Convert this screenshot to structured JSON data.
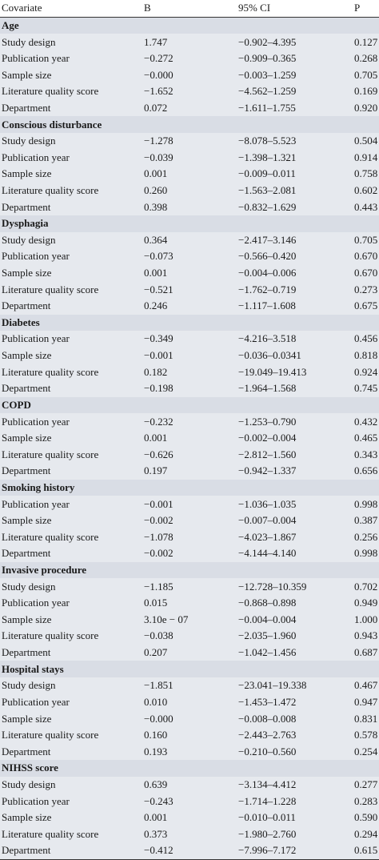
{
  "header": {
    "covariate": "Covariate",
    "b": "B",
    "ci": "95% CI",
    "p": "P"
  },
  "groups": [
    {
      "title": "Age",
      "rows": [
        [
          "Study design",
          "1.747",
          "−0.902–4.395",
          "0.127"
        ],
        [
          "Publication year",
          "−0.272",
          "−0.909–0.365",
          "0.268"
        ],
        [
          "Sample size",
          "−0.000",
          "−0.003–1.259",
          "0.705"
        ],
        [
          "Literature quality score",
          "−1.652",
          "−4.562–1.259",
          "0.169"
        ],
        [
          "Department",
          "0.072",
          "−1.611–1.755",
          "0.920"
        ]
      ]
    },
    {
      "title": "Conscious disturbance",
      "rows": [
        [
          "Study design",
          "−1.278",
          "−8.078–5.523",
          "0.504"
        ],
        [
          "Publication year",
          "−0.039",
          "−1.398–1.321",
          "0.914"
        ],
        [
          "Sample size",
          "0.001",
          "−0.009–0.011",
          "0.758"
        ],
        [
          "Literature quality score",
          "0.260",
          "−1.563–2.081",
          "0.602"
        ],
        [
          "Department",
          "0.398",
          "−0.832–1.629",
          "0.443"
        ]
      ]
    },
    {
      "title": "Dysphagia",
      "rows": [
        [
          "Study design",
          "0.364",
          "−2.417–3.146",
          "0.705"
        ],
        [
          "Publication year",
          "−0.073",
          "−0.566–0.420",
          "0.670"
        ],
        [
          "Sample size",
          "0.001",
          "−0.004–0.006",
          "0.670"
        ],
        [
          "Literature quality score",
          "−0.521",
          "−1.762–0.719",
          "0.273"
        ],
        [
          "Department",
          "0.246",
          "−1.117–1.608",
          "0.675"
        ]
      ]
    },
    {
      "title": "Diabetes",
      "rows": [
        [
          "Publication year",
          "−0.349",
          "−4.216–3.518",
          "0.456"
        ],
        [
          "Sample size",
          "−0.001",
          "−0.036–0.0341",
          "0.818"
        ],
        [
          "Literature quality score",
          "0.182",
          "−19.049–19.413",
          "0.924"
        ],
        [
          "Department",
          "−0.198",
          "−1.964–1.568",
          "0.745"
        ]
      ]
    },
    {
      "title": "COPD",
      "rows": [
        [
          "Publication year",
          "−0.232",
          "−1.253–0.790",
          "0.432"
        ],
        [
          "Sample size",
          "0.001",
          "−0.002–0.004",
          "0.465"
        ],
        [
          "Literature quality score",
          "−0.626",
          "−2.812–1.560",
          "0.343"
        ],
        [
          "Department",
          "0.197",
          "−0.942–1.337",
          "0.656"
        ]
      ]
    },
    {
      "title": "Smoking history",
      "rows": [
        [
          "Publication year",
          "−0.001",
          "−1.036–1.035",
          "0.998"
        ],
        [
          "Sample size",
          "−0.002",
          "−0.007–0.004",
          "0.387"
        ],
        [
          "Literature quality score",
          "−1.078",
          "−4.023–1.867",
          "0.256"
        ],
        [
          "Department",
          "−0.002",
          "−4.144–4.140",
          "0.998"
        ]
      ]
    },
    {
      "title": "Invasive procedure",
      "rows": [
        [
          "Study design",
          "−1.185",
          "−12.728–10.359",
          "0.702"
        ],
        [
          "Publication year",
          "0.015",
          "−0.868–0.898",
          "0.949"
        ],
        [
          "Sample size",
          "3.10e − 07",
          "−0.004–0.004",
          "1.000"
        ],
        [
          "Literature quality score",
          "−0.038",
          "−2.035–1.960",
          "0.943"
        ],
        [
          "Department",
          "0.207",
          "−1.042–1.456",
          "0.687"
        ]
      ]
    },
    {
      "title": "Hospital stays",
      "rows": [
        [
          "Study design",
          "−1.851",
          "−23.041–19.338",
          "0.467"
        ],
        [
          "Publication year",
          "0.010",
          "−1.453–1.472",
          "0.947"
        ],
        [
          "Sample size",
          "−0.000",
          "−0.008–0.008",
          "0.831"
        ],
        [
          "Literature quality score",
          "0.160",
          "−2.443–2.763",
          "0.578"
        ],
        [
          "Department",
          "0.193",
          "−0.210–0.560",
          "0.254"
        ]
      ]
    },
    {
      "title": "NIHSS score",
      "rows": [
        [
          "Study design",
          "0.639",
          "−3.134–4.412",
          "0.277"
        ],
        [
          "Publication year",
          "−0.243",
          "−1.714–1.228",
          "0.283"
        ],
        [
          "Sample size",
          "0.001",
          "−0.010–0.011",
          "0.590"
        ],
        [
          "Literature quality score",
          "0.373",
          "−1.980–2.760",
          "0.294"
        ],
        [
          "Department",
          "−0.412",
          "−7.996–7.172",
          "0.615"
        ]
      ]
    }
  ]
}
